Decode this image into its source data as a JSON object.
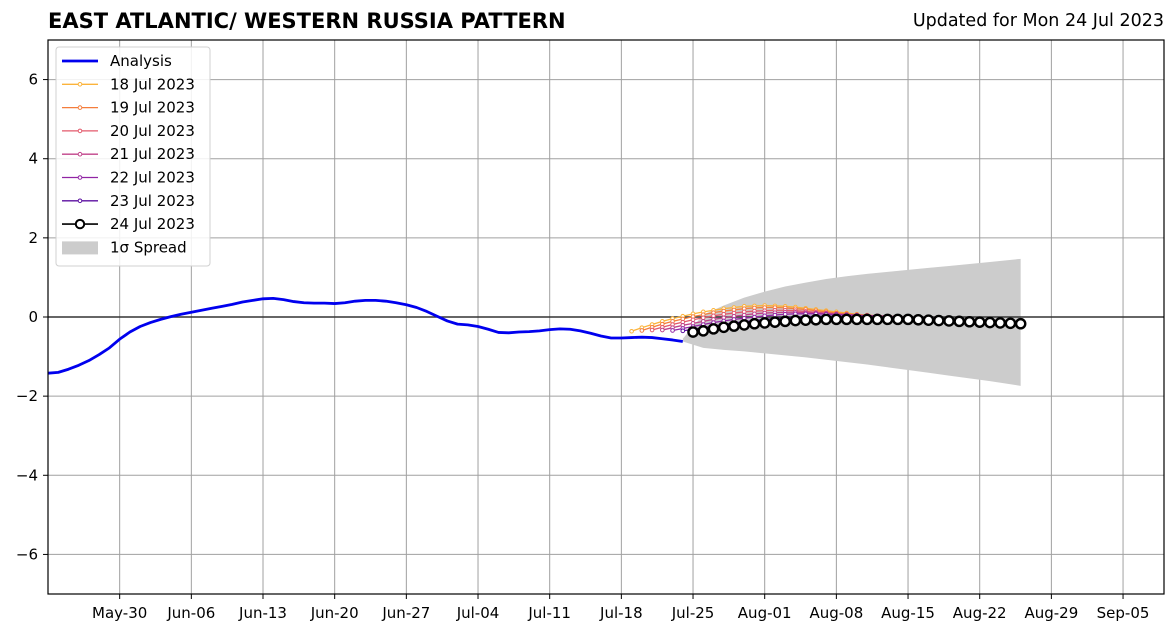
{
  "header": {
    "title": "EAST ATLANTIC/ WESTERN RUSSIA PATTERN",
    "updated": "Updated for Mon 24 Jul 2023"
  },
  "chart_data": {
    "type": "line",
    "title": "EAST ATLANTIC/ WESTERN RUSSIA PATTERN",
    "subtitle": "Updated for Mon 24 Jul 2023",
    "xlabel": "",
    "ylabel": "",
    "xlim": [
      "2023-05-23",
      "2023-09-09"
    ],
    "ylim": [
      -7,
      7
    ],
    "grid": true,
    "legend_position": "top-left",
    "x_ticks": [
      "2023-05-30",
      "2023-06-06",
      "2023-06-13",
      "2023-06-20",
      "2023-06-27",
      "2023-07-04",
      "2023-07-11",
      "2023-07-18",
      "2023-07-25",
      "2023-08-01",
      "2023-08-08",
      "2023-08-15",
      "2023-08-22",
      "2023-08-29",
      "2023-09-05"
    ],
    "x_tick_labels": [
      "May-30",
      "Jun-06",
      "Jun-13",
      "Jun-20",
      "Jun-27",
      "Jul-04",
      "Jul-11",
      "Jul-18",
      "Jul-25",
      "Aug-01",
      "Aug-08",
      "Aug-15",
      "Aug-22",
      "Aug-29",
      "Sep-05"
    ],
    "y_ticks": [
      -6,
      -4,
      -2,
      0,
      2,
      4,
      6
    ],
    "y_tick_labels": [
      "−6",
      "−4",
      "−2",
      "0",
      "2",
      "4",
      "6"
    ],
    "analysis": {
      "name": "Analysis",
      "color": "#0000ee",
      "points": [
        [
          "2023-05-23",
          -1.42
        ],
        [
          "2023-05-24",
          -1.4
        ],
        [
          "2023-05-25",
          -1.32
        ],
        [
          "2023-05-26",
          -1.22
        ],
        [
          "2023-05-27",
          -1.1
        ],
        [
          "2023-05-28",
          -0.95
        ],
        [
          "2023-05-29",
          -0.78
        ],
        [
          "2023-05-30",
          -0.56
        ],
        [
          "2023-05-31",
          -0.38
        ],
        [
          "2023-06-01",
          -0.24
        ],
        [
          "2023-06-02",
          -0.14
        ],
        [
          "2023-06-03",
          -0.06
        ],
        [
          "2023-06-04",
          0.01
        ],
        [
          "2023-06-05",
          0.07
        ],
        [
          "2023-06-06",
          0.12
        ],
        [
          "2023-06-07",
          0.17
        ],
        [
          "2023-06-08",
          0.22
        ],
        [
          "2023-06-09",
          0.27
        ],
        [
          "2023-06-10",
          0.32
        ],
        [
          "2023-06-11",
          0.38
        ],
        [
          "2023-06-12",
          0.42
        ],
        [
          "2023-06-13",
          0.46
        ],
        [
          "2023-06-14",
          0.47
        ],
        [
          "2023-06-15",
          0.44
        ],
        [
          "2023-06-16",
          0.39
        ],
        [
          "2023-06-17",
          0.36
        ],
        [
          "2023-06-18",
          0.35
        ],
        [
          "2023-06-19",
          0.35
        ],
        [
          "2023-06-20",
          0.34
        ],
        [
          "2023-06-21",
          0.36
        ],
        [
          "2023-06-22",
          0.4
        ],
        [
          "2023-06-23",
          0.42
        ],
        [
          "2023-06-24",
          0.42
        ],
        [
          "2023-06-25",
          0.4
        ],
        [
          "2023-06-26",
          0.36
        ],
        [
          "2023-06-27",
          0.31
        ],
        [
          "2023-06-28",
          0.24
        ],
        [
          "2023-06-29",
          0.14
        ],
        [
          "2023-06-30",
          0.02
        ],
        [
          "2023-07-01",
          -0.1
        ],
        [
          "2023-07-02",
          -0.18
        ],
        [
          "2023-07-03",
          -0.2
        ],
        [
          "2023-07-04",
          -0.24
        ],
        [
          "2023-07-05",
          -0.31
        ],
        [
          "2023-07-06",
          -0.39
        ],
        [
          "2023-07-07",
          -0.4
        ],
        [
          "2023-07-08",
          -0.38
        ],
        [
          "2023-07-09",
          -0.37
        ],
        [
          "2023-07-10",
          -0.35
        ],
        [
          "2023-07-11",
          -0.32
        ],
        [
          "2023-07-12",
          -0.3
        ],
        [
          "2023-07-13",
          -0.31
        ],
        [
          "2023-07-14",
          -0.35
        ],
        [
          "2023-07-15",
          -0.41
        ],
        [
          "2023-07-16",
          -0.48
        ],
        [
          "2023-07-17",
          -0.53
        ],
        [
          "2023-07-18",
          -0.53
        ],
        [
          "2023-07-19",
          -0.52
        ],
        [
          "2023-07-20",
          -0.51
        ],
        [
          "2023-07-21",
          -0.52
        ],
        [
          "2023-07-22",
          -0.55
        ],
        [
          "2023-07-23",
          -0.58
        ],
        [
          "2023-07-24",
          -0.62
        ]
      ]
    },
    "forecasts": [
      {
        "name": "18 Jul 2023",
        "color": "#fbb33a",
        "start": "2023-07-19",
        "values": [
          -0.36,
          -0.27,
          -0.19,
          -0.11,
          -0.04,
          0.02,
          0.08,
          0.13,
          0.17,
          0.21,
          0.24,
          0.27,
          0.28,
          0.29,
          0.28,
          0.27,
          0.25,
          0.22,
          0.19,
          0.16,
          0.13,
          0.1,
          0.07,
          0.05,
          0.03,
          0.02,
          0.01,
          0.0
        ]
      },
      {
        "name": "19 Jul 2023",
        "color": "#f47d3c",
        "start": "2023-07-20",
        "values": [
          -0.34,
          -0.26,
          -0.18,
          -0.11,
          -0.05,
          0.01,
          0.06,
          0.11,
          0.15,
          0.18,
          0.21,
          0.23,
          0.24,
          0.24,
          0.23,
          0.21,
          0.19,
          0.16,
          0.13,
          0.1,
          0.08,
          0.06,
          0.04,
          0.02,
          0.01,
          0.0,
          -0.01,
          -0.02
        ]
      },
      {
        "name": "20 Jul 2023",
        "color": "#e3596b",
        "start": "2023-07-21",
        "values": [
          -0.33,
          -0.26,
          -0.19,
          -0.13,
          -0.07,
          -0.02,
          0.03,
          0.07,
          0.1,
          0.13,
          0.15,
          0.16,
          0.17,
          0.17,
          0.16,
          0.14,
          0.12,
          0.1,
          0.08,
          0.06,
          0.04,
          0.03,
          0.02,
          0.01,
          0.0,
          -0.01,
          -0.02,
          -0.03
        ]
      },
      {
        "name": "21 Jul 2023",
        "color": "#c0428a",
        "start": "2023-07-22",
        "values": [
          -0.33,
          -0.27,
          -0.21,
          -0.16,
          -0.11,
          -0.06,
          -0.02,
          0.02,
          0.05,
          0.08,
          0.1,
          0.11,
          0.12,
          0.12,
          0.11,
          0.1,
          0.09,
          0.07,
          0.06,
          0.05,
          0.04,
          0.03,
          0.02,
          0.01,
          0.0,
          -0.01,
          -0.02,
          -0.03
        ]
      },
      {
        "name": "22 Jul 2023",
        "color": "#9124a4",
        "start": "2023-07-23",
        "values": [
          -0.34,
          -0.29,
          -0.24,
          -0.19,
          -0.14,
          -0.1,
          -0.06,
          -0.03,
          0.0,
          0.03,
          0.05,
          0.07,
          0.08,
          0.08,
          0.08,
          0.07,
          0.06,
          0.05,
          0.04,
          0.03,
          0.02,
          0.01,
          0.0,
          -0.01,
          -0.02,
          -0.03,
          -0.04,
          -0.05
        ]
      },
      {
        "name": "23 Jul 2023",
        "color": "#5b0fa1",
        "start": "2023-07-24",
        "values": [
          -0.35,
          -0.31,
          -0.27,
          -0.23,
          -0.19,
          -0.15,
          -0.12,
          -0.09,
          -0.06,
          -0.04,
          -0.02,
          0.0,
          0.01,
          0.02,
          0.02,
          0.02,
          0.01,
          0.0,
          -0.01,
          -0.02,
          -0.03,
          -0.04,
          -0.05,
          -0.06,
          -0.07,
          -0.08,
          -0.09,
          -0.1
        ]
      },
      {
        "name": "24 Jul 2023",
        "color": "#000000",
        "start": "2023-07-25",
        "values": [
          -0.38,
          -0.35,
          -0.3,
          -0.26,
          -0.23,
          -0.2,
          -0.17,
          -0.15,
          -0.13,
          -0.11,
          -0.09,
          -0.08,
          -0.07,
          -0.06,
          -0.06,
          -0.06,
          -0.06,
          -0.06,
          -0.06,
          -0.06,
          -0.06,
          -0.06,
          -0.07,
          -0.08,
          -0.09,
          -0.1,
          -0.11,
          -0.12,
          -0.13,
          -0.14,
          -0.15,
          -0.16,
          -0.17
        ]
      }
    ],
    "spread": {
      "name": "1σ Spread",
      "color": "#cccccc",
      "x": [
        "2023-07-24",
        "2023-07-26",
        "2023-07-28",
        "2023-07-30",
        "2023-08-01",
        "2023-08-03",
        "2023-08-05",
        "2023-08-07",
        "2023-08-09",
        "2023-08-11",
        "2023-08-13",
        "2023-08-15",
        "2023-08-17",
        "2023-08-19",
        "2023-08-21",
        "2023-08-23",
        "2023-08-26"
      ],
      "upper": [
        -0.55,
        0.06,
        0.29,
        0.49,
        0.64,
        0.77,
        0.87,
        0.96,
        1.03,
        1.09,
        1.14,
        1.19,
        1.24,
        1.29,
        1.34,
        1.39,
        1.47
      ],
      "lower": [
        -0.62,
        -0.78,
        -0.83,
        -0.87,
        -0.92,
        -0.97,
        -1.02,
        -1.08,
        -1.14,
        -1.2,
        -1.27,
        -1.34,
        -1.41,
        -1.48,
        -1.55,
        -1.62,
        -1.74
      ]
    }
  }
}
